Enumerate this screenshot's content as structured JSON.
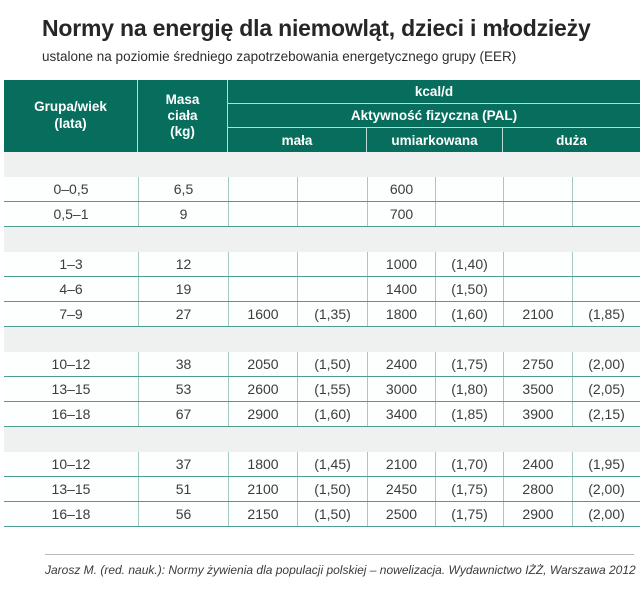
{
  "page": {
    "title": "Normy na energię dla niemowląt, dzieci i młodzieży",
    "subtitle": "ustalone na poziomie średniego zapotrzebowania energetycznego grupy (EER)",
    "footer": "Jarosz M. (red. nauk.): Normy żywienia dla populacji polskiej – nowelizacja. Wydawnictwo IŻŻ, Warszawa 2012"
  },
  "colors": {
    "header_bg": "#076e5e",
    "header_divider": "#bcdad5",
    "row_line": "#4d9c8f",
    "column_line": "#a3c9c2",
    "section_band": "#eff1f1"
  },
  "table": {
    "header": {
      "group_age": "Grupa/wiek\n(lata)",
      "body_mass": "Masa\nciała\n(kg)",
      "unit": "kcal/d",
      "activity": "Aktywność fizyczna (PAL)",
      "levels": {
        "low": "mała",
        "moderate": "umiarkowana",
        "high": "duża"
      }
    },
    "sections": [
      {
        "rows": [
          {
            "age": "0–0,5",
            "mass": "6,5",
            "cells": [
              "",
              "",
              "600",
              "",
              "",
              ""
            ]
          },
          {
            "age": "0,5–1",
            "mass": "9",
            "cells": [
              "",
              "",
              "700",
              "",
              "",
              ""
            ]
          }
        ]
      },
      {
        "rows": [
          {
            "age": "1–3",
            "mass": "12",
            "cells": [
              "",
              "",
              "1000",
              "(1,40)",
              "",
              ""
            ]
          },
          {
            "age": "4–6",
            "mass": "19",
            "cells": [
              "",
              "",
              "1400",
              "(1,50)",
              "",
              ""
            ]
          },
          {
            "age": "7–9",
            "mass": "27",
            "cells": [
              "1600",
              "(1,35)",
              "1800",
              "(1,60)",
              "2100",
              "(1,85)"
            ]
          }
        ]
      },
      {
        "rows": [
          {
            "age": "10–12",
            "mass": "38",
            "cells": [
              "2050",
              "(1,50)",
              "2400",
              "(1,75)",
              "2750",
              "(2,00)"
            ]
          },
          {
            "age": "13–15",
            "mass": "53",
            "cells": [
              "2600",
              "(1,55)",
              "3000",
              "(1,80)",
              "3500",
              "(2,05)"
            ]
          },
          {
            "age": "16–18",
            "mass": "67",
            "cells": [
              "2900",
              "(1,60)",
              "3400",
              "(1,85)",
              "3900",
              "(2,15)"
            ]
          }
        ]
      },
      {
        "rows": [
          {
            "age": "10–12",
            "mass": "37",
            "cells": [
              "1800",
              "(1,45)",
              "2100",
              "(1,70)",
              "2400",
              "(1,95)"
            ]
          },
          {
            "age": "13–15",
            "mass": "51",
            "cells": [
              "2100",
              "(1,50)",
              "2450",
              "(1,75)",
              "2800",
              "(2,00)"
            ]
          },
          {
            "age": "16–18",
            "mass": "56",
            "cells": [
              "2150",
              "(1,50)",
              "2500",
              "(1,75)",
              "2900",
              "(2,00)"
            ]
          }
        ]
      }
    ]
  }
}
